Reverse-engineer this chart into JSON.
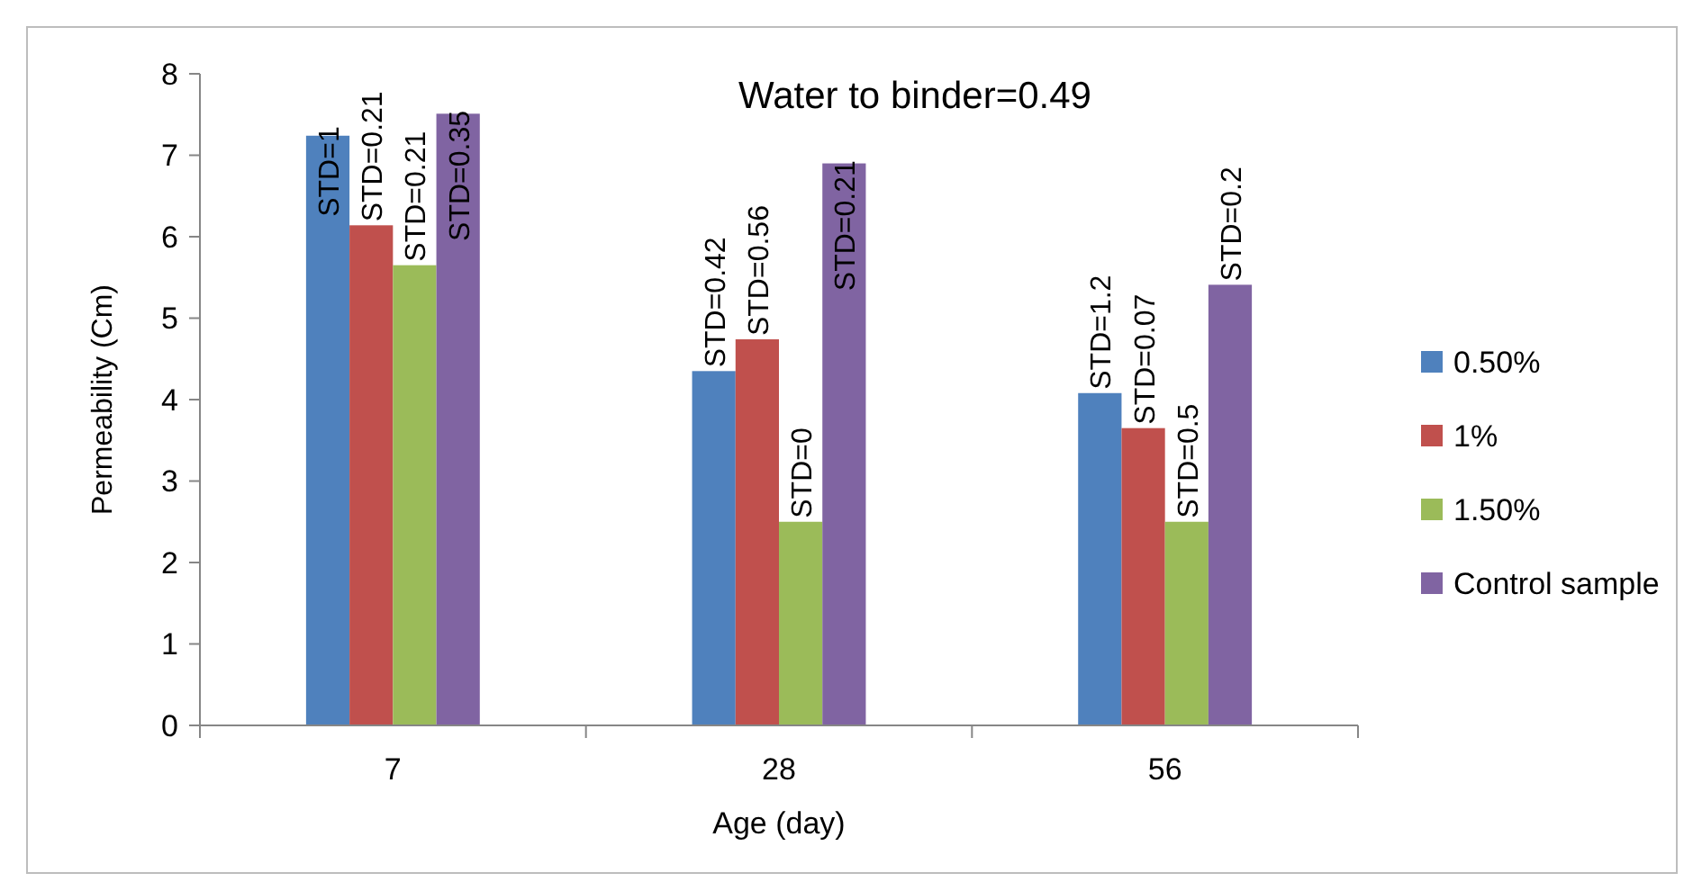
{
  "chart_data": {
    "type": "bar",
    "title": "Water to binder=0.49",
    "xlabel": "Age (day)",
    "ylabel": "Permeability (Cm)",
    "categories": [
      "7",
      "28",
      "56"
    ],
    "series": [
      {
        "name": "0.50%",
        "color": "#4f81bd",
        "values": [
          7.24,
          4.35,
          4.08
        ]
      },
      {
        "name": "1%",
        "color": "#c0504d",
        "values": [
          6.14,
          4.74,
          3.65
        ]
      },
      {
        "name": "1.50%",
        "color": "#9bbb59",
        "values": [
          5.65,
          2.5,
          2.5
        ]
      },
      {
        "name": "Control sample",
        "color": "#8064a2",
        "values": [
          7.51,
          6.9,
          5.41
        ]
      }
    ],
    "annotations": [
      "STD=1",
      "STD=0.21",
      "STD=0.21",
      "STD=0.35",
      "STD=0.42",
      "STD=0.56",
      "STD=0",
      "STD=0.21",
      "STD=1.2",
      "STD=0.07",
      "STD=0.5",
      "STD=0.2"
    ],
    "ylim": [
      0,
      8
    ],
    "yticks": [
      0,
      1,
      2,
      3,
      4,
      5,
      6,
      7,
      8
    ],
    "grid": false,
    "legend": "right"
  }
}
